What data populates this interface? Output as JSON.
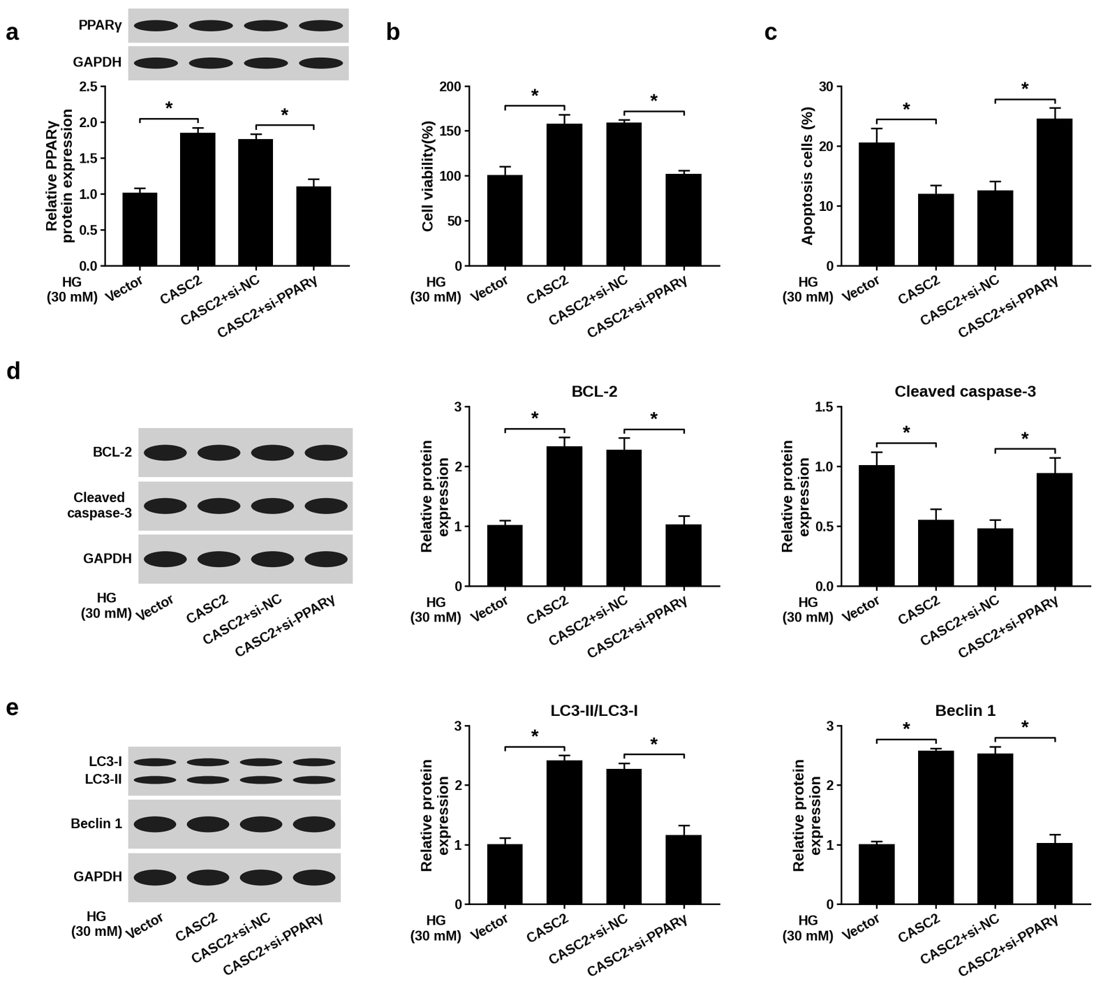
{
  "panel_labels": [
    "a",
    "b",
    "c",
    "d",
    "e"
  ],
  "blots": [
    {
      "rows": [
        [
          "PPARγ"
        ],
        [
          "GAPDH"
        ]
      ]
    },
    {
      "rows": [
        [
          "BCL-2"
        ],
        [
          "Cleaved\ncaspase-3"
        ],
        [
          "GAPDH"
        ]
      ],
      "categories": [
        "Vector",
        "CASC2",
        "CASC2+si-NC",
        "CASC2+si-PPARγ"
      ],
      "group_label": "HG\n(30 mM)"
    },
    {
      "rows": [
        [
          "LC3-I",
          "LC3-II"
        ],
        [
          "Beclin 1"
        ],
        [
          "GAPDH"
        ]
      ],
      "categories": [
        "Vector",
        "CASC2",
        "CASC2+si-NC",
        "CASC2+si-PPARγ"
      ],
      "group_label": "HG\n(30 mM)"
    }
  ],
  "chart_data": [
    {
      "type": "bar",
      "ylabel": "Relative PPARγ\nprotein expression",
      "group_label": "HG\n(30 mM)",
      "categories": [
        "Vector",
        "CASC2",
        "CASC2+si-NC",
        "CASC2+si-PPARγ"
      ],
      "values": [
        1.01,
        1.85,
        1.76,
        1.1
      ],
      "errors": [
        0.07,
        0.07,
        0.07,
        0.1
      ],
      "color": "#000000",
      "ylim": [
        0,
        2.5
      ],
      "yticks": [
        {
          "value": 0,
          "label": "0.0"
        },
        {
          "value": 0.5,
          "label": "0.5"
        },
        {
          "value": 1,
          "label": "1.0"
        },
        {
          "value": 1.5,
          "label": "1.5"
        },
        {
          "value": 2,
          "label": "2.0"
        },
        {
          "value": 2.5,
          "label": "2.5"
        }
      ],
      "significance": {
        "pairs": [
          [
            0,
            1
          ],
          [
            2,
            3
          ]
        ],
        "label": "*"
      }
    },
    {
      "type": "bar",
      "ylabel": "Cell viability(%)",
      "group_label": "HG\n(30 mM)",
      "categories": [
        "Vector",
        "CASC2",
        "CASC2+si-NC",
        "CASC2+si-PPARγ"
      ],
      "values": [
        101,
        158,
        159,
        102
      ],
      "errors": [
        9,
        10,
        3,
        4
      ],
      "color": "#000000",
      "ylim": [
        0,
        200
      ],
      "yticks": [
        0,
        50,
        100,
        150,
        200
      ],
      "significance": {
        "pairs": [
          [
            0,
            1
          ],
          [
            2,
            3
          ]
        ],
        "label": "*"
      }
    },
    {
      "type": "bar",
      "ylabel": "Apoptosis cells (%)",
      "group_label": "HG\n(30 mM)",
      "categories": [
        "Vector",
        "CASC2",
        "CASC2+si-NC",
        "CASC2+si-PPARγ"
      ],
      "values": [
        20.5,
        12.0,
        12.5,
        24.5
      ],
      "errors": [
        2.4,
        1.4,
        1.6,
        1.8
      ],
      "color": "#000000",
      "ylim": [
        0,
        30
      ],
      "yticks": [
        0,
        10,
        20,
        30
      ],
      "significance": {
        "pairs": [
          [
            0,
            1
          ],
          [
            2,
            3
          ]
        ],
        "label": "*"
      }
    },
    {
      "type": "bar",
      "title": "BCL-2",
      "ylabel": "Relative protein\nexpression",
      "group_label": "HG\n(30 mM)",
      "categories": [
        "Vector",
        "CASC2",
        "CASC2+si-NC",
        "CASC2+si-PPARγ"
      ],
      "values": [
        1.02,
        2.33,
        2.27,
        1.03
      ],
      "errors": [
        0.07,
        0.15,
        0.2,
        0.14
      ],
      "color": "#000000",
      "ylim": [
        0,
        3
      ],
      "yticks": [
        0,
        1,
        2,
        3
      ],
      "significance": {
        "pairs": [
          [
            0,
            1
          ],
          [
            2,
            3
          ]
        ],
        "label": "*"
      }
    },
    {
      "type": "bar",
      "title": "Cleaved caspase-3",
      "ylabel": "Relative protein\nexpression",
      "group_label": "HG\n(30 mM)",
      "categories": [
        "Vector",
        "CASC2",
        "CASC2+si-NC",
        "CASC2+si-PPARγ"
      ],
      "values": [
        1.01,
        0.55,
        0.48,
        0.94
      ],
      "errors": [
        0.11,
        0.09,
        0.07,
        0.13
      ],
      "color": "#000000",
      "ylim": [
        0,
        1.5
      ],
      "yticks": [
        {
          "value": 0,
          "label": "0.0"
        },
        {
          "value": 0.5,
          "label": "0.5"
        },
        {
          "value": 1,
          "label": "1.0"
        },
        {
          "value": 1.5,
          "label": "1.5"
        }
      ],
      "significance": {
        "pairs": [
          [
            0,
            1
          ],
          [
            2,
            3
          ]
        ],
        "label": "*"
      }
    },
    {
      "type": "bar",
      "title": "LC3-II/LC3-I",
      "ylabel": "Relative protein\nexpression",
      "group_label": "HG\n(30 mM)",
      "categories": [
        "Vector",
        "CASC2",
        "CASC2+si-NC",
        "CASC2+si-PPARγ"
      ],
      "values": [
        1.01,
        2.42,
        2.27,
        1.16
      ],
      "errors": [
        0.1,
        0.08,
        0.1,
        0.16
      ],
      "color": "#000000",
      "ylim": [
        0,
        3
      ],
      "yticks": [
        0,
        1,
        2,
        3
      ],
      "significance": {
        "pairs": [
          [
            0,
            1
          ],
          [
            2,
            3
          ]
        ],
        "label": "*"
      }
    },
    {
      "type": "bar",
      "title": "Beclin 1",
      "ylabel": "Relative protein\nexpression",
      "group_label": "HG\n(30 mM)",
      "categories": [
        "Vector",
        "CASC2",
        "CASC2+si-NC",
        "CASC2+si-PPARγ"
      ],
      "values": [
        1.01,
        2.58,
        2.53,
        1.03
      ],
      "errors": [
        0.05,
        0.04,
        0.12,
        0.14
      ],
      "color": "#000000",
      "ylim": [
        0,
        3
      ],
      "yticks": [
        0,
        1,
        2,
        3
      ],
      "significance": {
        "pairs": [
          [
            0,
            1
          ],
          [
            2,
            3
          ]
        ],
        "label": "*"
      }
    }
  ]
}
